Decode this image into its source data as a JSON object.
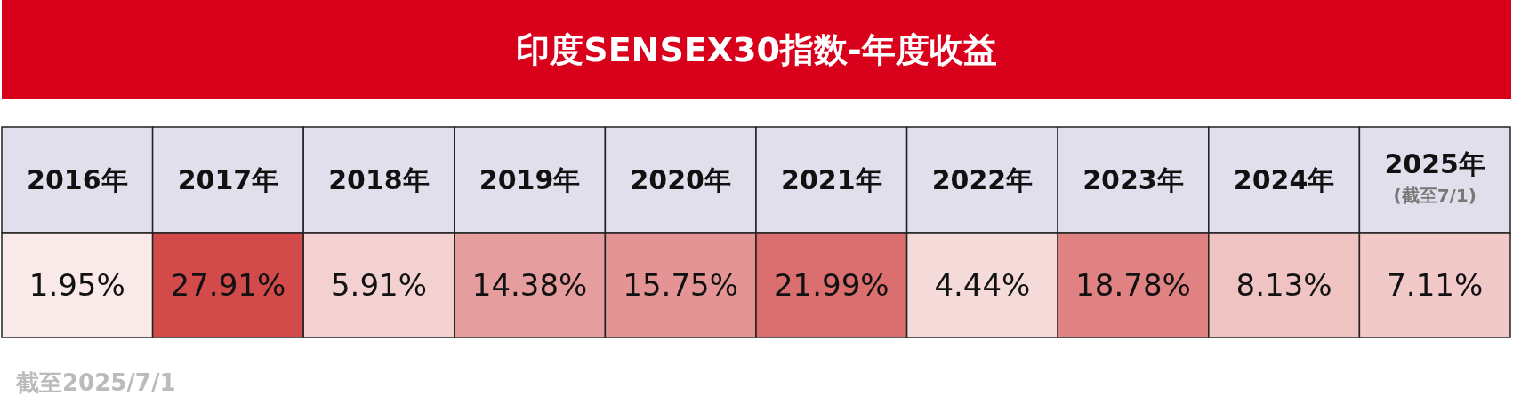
{
  "chart_data": {
    "type": "heatmap",
    "title": "印度SENSEX30指数-年度收益",
    "categories": [
      "2016年",
      "2017年",
      "2018年",
      "2019年",
      "2020年",
      "2021年",
      "2022年",
      "2023年",
      "2024年",
      "2025年\n(截至7/1)"
    ],
    "y_categories": [
      null
    ],
    "cells": [
      [
        1.95,
        27.91,
        5.91,
        14.38,
        15.75,
        21.99,
        4.44,
        18.78,
        8.13,
        7.11
      ]
    ],
    "cell_labels": [
      [
        "1.95%",
        "27.91%",
        "5.91%",
        "14.38%",
        "15.75%",
        "21.99%",
        "4.44%",
        "18.78%",
        "8.13%",
        "7.11%"
      ]
    ],
    "annotations": [
      "截至2025/7/1"
    ]
  }
}
